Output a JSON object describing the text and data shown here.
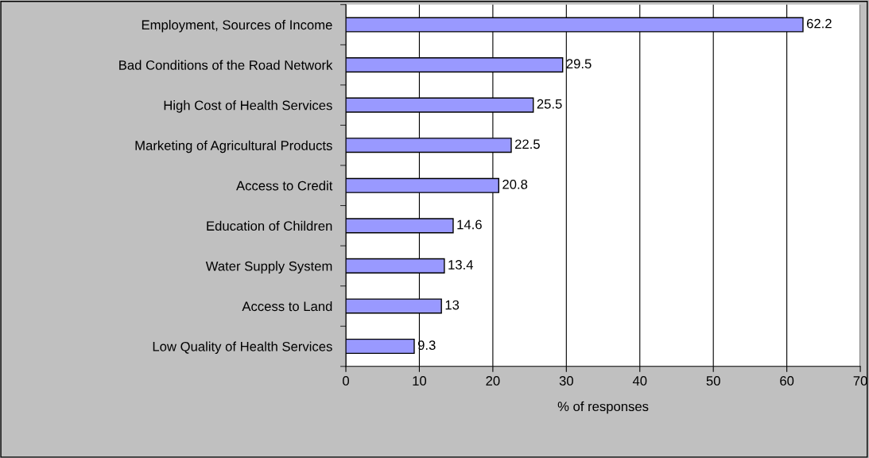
{
  "chart_data": {
    "type": "bar",
    "orientation": "horizontal",
    "xlabel": "% of responses",
    "categories": [
      "Employment, Sources of Income",
      "Bad Conditions of the Road Network",
      "High Cost of Health Services",
      "Marketing of Agricultural Products",
      "Access to Credit",
      "Education of Children",
      "Water Supply System",
      "Access to Land",
      "Low Quality of Health Services"
    ],
    "values": [
      62.2,
      29.5,
      25.5,
      22.5,
      20.8,
      14.6,
      13.4,
      13,
      9.3
    ],
    "color": "#9999ff",
    "xlim": [
      0,
      70
    ],
    "xticks": [
      0,
      10,
      20,
      30,
      40,
      50,
      60,
      70
    ],
    "grid": "x",
    "data_labels": true,
    "legend": false
  }
}
